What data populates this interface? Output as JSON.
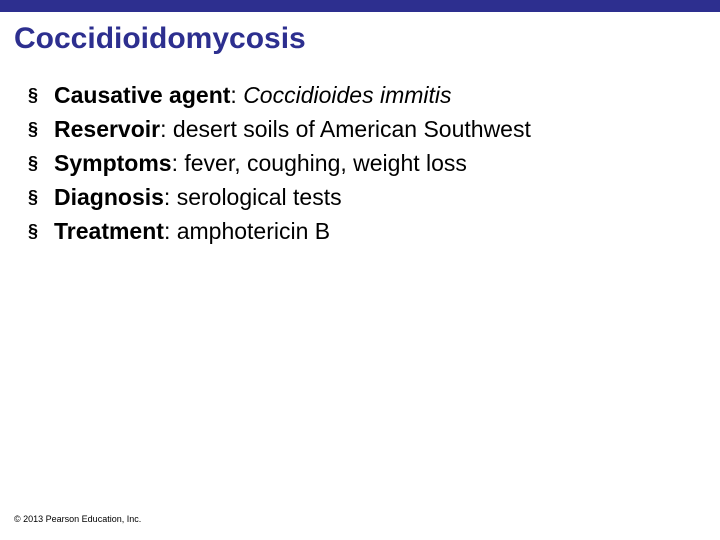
{
  "colors": {
    "topbar": "#2d2f8f",
    "title": "#2d2f8f",
    "bullet": "#000000",
    "text": "#000000",
    "footer": "#000000",
    "background": "#ffffff"
  },
  "title": "Coccidioidomycosis",
  "bullet_glyph": "§",
  "bullets": [
    {
      "label": "Causative agent",
      "value_italic": "Coccidioides immitis",
      "value_plain": ""
    },
    {
      "label": "Reservoir",
      "value_italic": "",
      "value_plain": "desert soils of American Southwest"
    },
    {
      "label": "Symptoms",
      "value_italic": "",
      "value_plain": "fever, coughing, weight loss"
    },
    {
      "label": "Diagnosis",
      "value_italic": "",
      "value_plain": "serological tests"
    },
    {
      "label": "Treatment",
      "value_italic": "",
      "value_plain": "amphotericin B"
    }
  ],
  "footer": "© 2013 Pearson Education, Inc."
}
